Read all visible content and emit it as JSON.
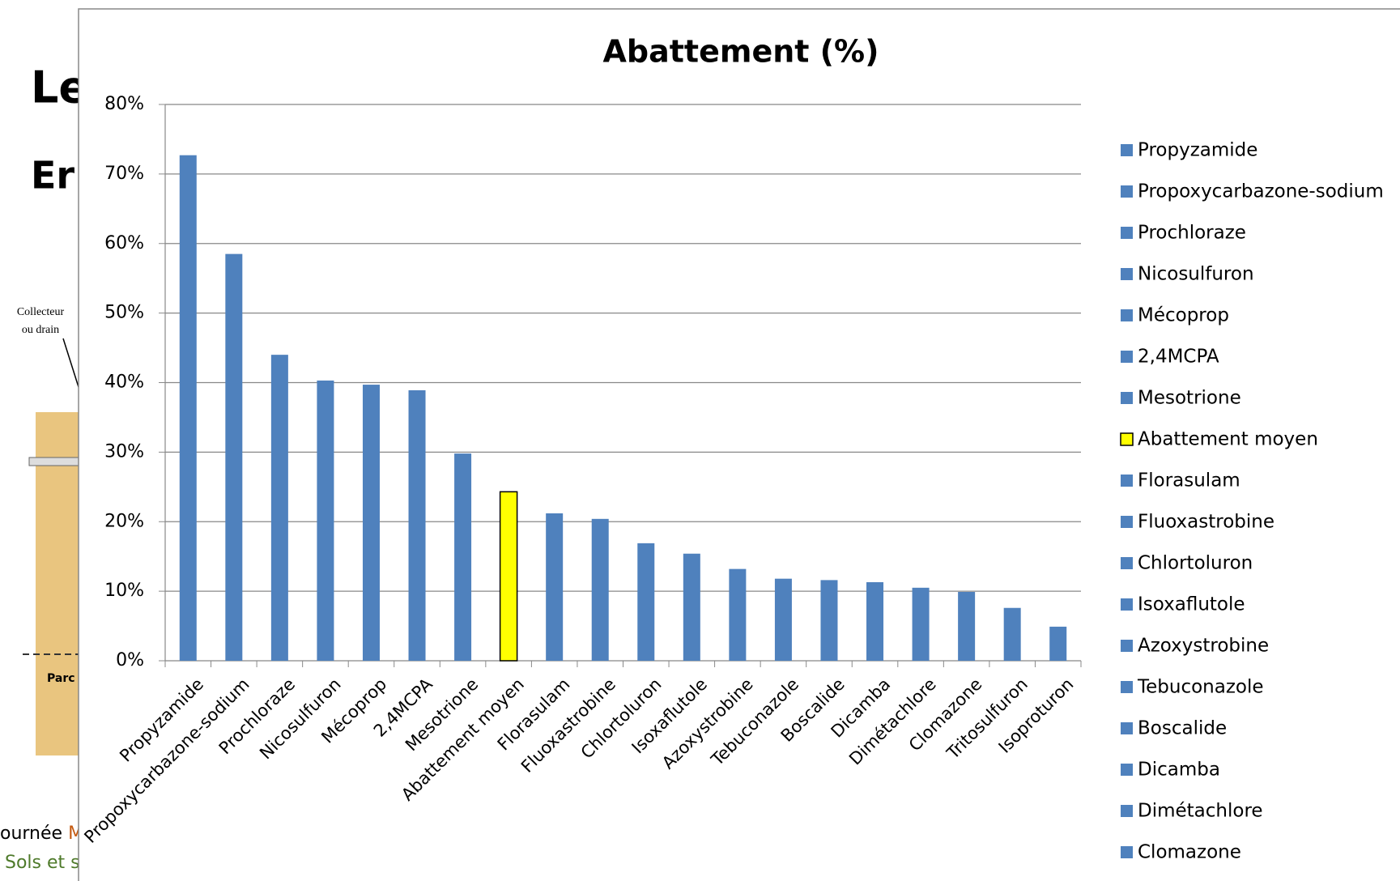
{
  "slide": {
    "title_fragment": "Le",
    "subtitle_fragment": "Er",
    "diagram_label_1": "Collecteur",
    "diagram_label_2": "ou drain",
    "diagram_label_3": "Parc",
    "footer_fragment": "ournée ",
    "footer_highlight": "M",
    "footer_line2": "Sols et s"
  },
  "chart_data": {
    "type": "bar",
    "title": "Abattement (%)",
    "categories": [
      "Propyzamide",
      "Propoxycarbazone-sodium",
      "Prochloraze",
      "Nicosulfuron",
      "Mécoprop",
      "2,4MCPA",
      "Mesotrione",
      "Abattement moyen",
      "Florasulam",
      "Fluoxastrobine",
      "Chlortoluron",
      "Isoxaflutole",
      "Azoxystrobine",
      "Tebuconazole",
      "Boscalide",
      "Dicamba",
      "Dimétachlore",
      "Clomazone",
      "Tritosulfuron",
      "Isoproturon"
    ],
    "values": [
      72.7,
      58.5,
      44.0,
      40.3,
      39.7,
      38.9,
      29.8,
      24.3,
      21.2,
      20.4,
      16.9,
      15.4,
      13.2,
      11.8,
      11.6,
      11.3,
      10.5,
      9.9,
      7.6,
      4.9
    ],
    "colors": [
      "#4f81bd",
      "#4f81bd",
      "#4f81bd",
      "#4f81bd",
      "#4f81bd",
      "#4f81bd",
      "#4f81bd",
      "#ffff00",
      "#4f81bd",
      "#4f81bd",
      "#4f81bd",
      "#4f81bd",
      "#4f81bd",
      "#4f81bd",
      "#4f81bd",
      "#4f81bd",
      "#4f81bd",
      "#4f81bd",
      "#4f81bd",
      "#4f81bd"
    ],
    "ylim": [
      0,
      80
    ],
    "yticks": [
      {
        "value": 0,
        "label": "0%"
      },
      {
        "value": 10,
        "label": "10%"
      },
      {
        "value": 20,
        "label": "20%"
      },
      {
        "value": 30,
        "label": "30%"
      },
      {
        "value": 40,
        "label": "40%"
      },
      {
        "value": 50,
        "label": "50%"
      },
      {
        "value": 60,
        "label": "60%"
      },
      {
        "value": 70,
        "label": "70%"
      },
      {
        "value": 80,
        "label": "80%"
      }
    ],
    "grid": true,
    "legend": "right"
  }
}
